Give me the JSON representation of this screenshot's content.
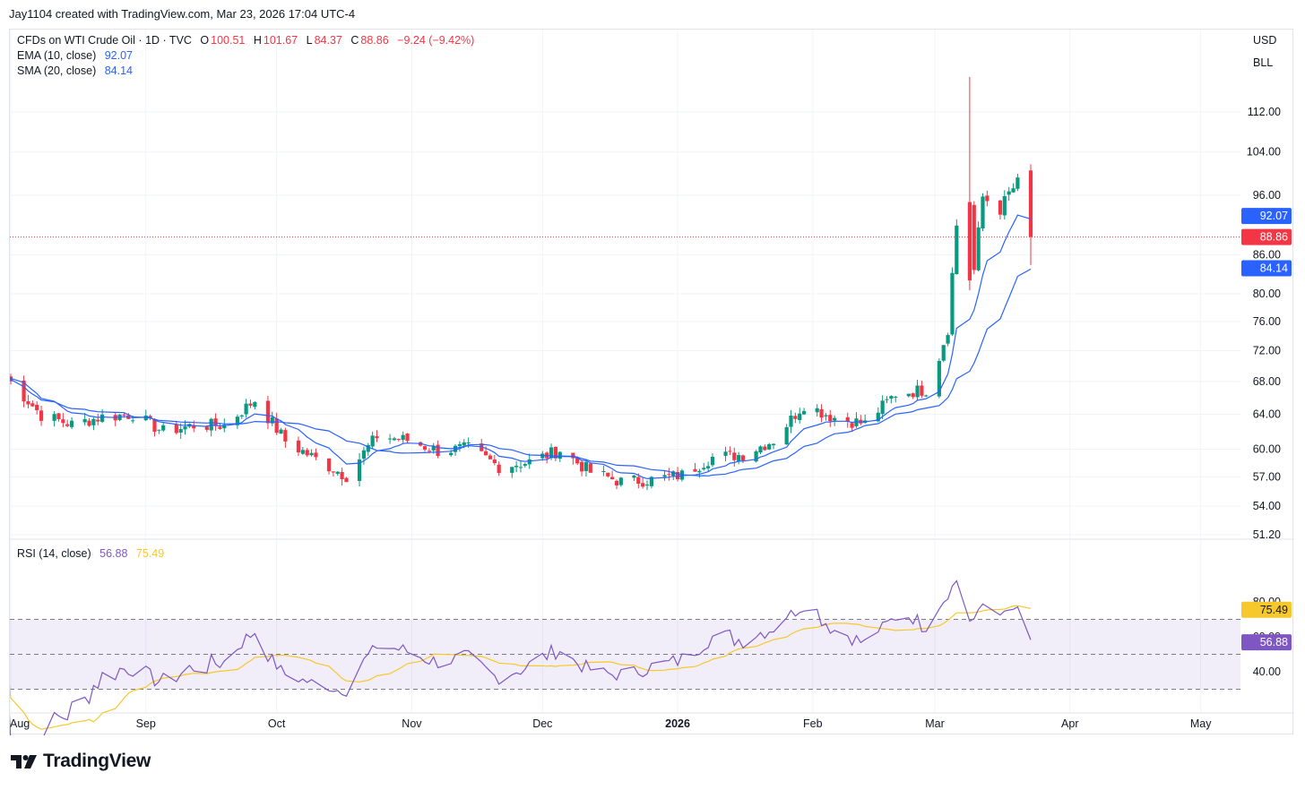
{
  "header": {
    "note": "Jay1104 created with TradingView.com, Mar 23, 2026 17:04 UTC-4"
  },
  "legend": {
    "symbol": "CFDs on WTI Crude Oil · 1D · TVC",
    "open_label": "O",
    "open": "100.51",
    "high_label": "H",
    "high": "101.67",
    "low_label": "L",
    "low": "84.37",
    "close_label": "C",
    "close": "88.86",
    "change": "−9.24 (−9.42%)",
    "ema_label": "EMA (10, close)",
    "ema_value": "92.07",
    "sma_label": "SMA (20, close)",
    "sma_value": "84.14",
    "rsi_label": "RSI (14, close)",
    "rsi_value": "56.88",
    "rsi_ma_value": "75.49"
  },
  "price_axis": {
    "currency": "USD",
    "unit": "BLL"
  },
  "brand": {
    "name": "TradingView"
  },
  "colors": {
    "up": "#089981",
    "down": "#f23645",
    "ema": "#2962ff",
    "sma": "#2962ff",
    "rsi": "#7e57c2",
    "rsi_ma": "#f7c82b",
    "last_price": "#f23645",
    "grid": "#f0f3fa"
  },
  "chart_data": [
    {
      "type": "candlestick",
      "title": "CFDs on WTI Crude Oil · 1D · TVC",
      "y_axis": {
        "ticks": [
          51.2,
          54,
          57,
          60,
          64,
          68,
          72,
          76,
          80,
          86,
          96,
          104,
          112
        ],
        "scale": "log"
      },
      "x_axis": {
        "labels": [
          "Aug",
          "Sep",
          "Oct",
          "Nov",
          "Dec",
          "2026",
          "Feb",
          "Mar",
          "Apr",
          "May"
        ]
      },
      "last_ohlc": {
        "open": 100.51,
        "high": 101.67,
        "low": 84.37,
        "close": 88.86
      },
      "closes_sampled": [
        {
          "date": "2025-07-31",
          "close": 68.5
        },
        {
          "date": "2025-08-08",
          "close": 63.9
        },
        {
          "date": "2025-08-15",
          "close": 62.8
        },
        {
          "date": "2025-08-22",
          "close": 63.7
        },
        {
          "date": "2025-08-29",
          "close": 64.0
        },
        {
          "date": "2025-09-05",
          "close": 62.0
        },
        {
          "date": "2025-09-12",
          "close": 62.7
        },
        {
          "date": "2025-09-19",
          "close": 62.7
        },
        {
          "date": "2025-09-26",
          "close": 65.7
        },
        {
          "date": "2025-10-03",
          "close": 60.9
        },
        {
          "date": "2025-10-10",
          "close": 58.9
        },
        {
          "date": "2025-10-17",
          "close": 57.1
        },
        {
          "date": "2025-10-24",
          "close": 61.5
        },
        {
          "date": "2025-10-31",
          "close": 61.0
        },
        {
          "date": "2025-11-07",
          "close": 59.8
        },
        {
          "date": "2025-11-14",
          "close": 60.1
        },
        {
          "date": "2025-11-21",
          "close": 58.1
        },
        {
          "date": "2025-11-28",
          "close": 58.6
        },
        {
          "date": "2025-12-05",
          "close": 59.9
        },
        {
          "date": "2025-12-12",
          "close": 57.5
        },
        {
          "date": "2025-12-19",
          "close": 56.5
        },
        {
          "date": "2025-12-26",
          "close": 56.7
        },
        {
          "date": "2026-01-02",
          "close": 57.2
        },
        {
          "date": "2026-01-09",
          "close": 59.1
        },
        {
          "date": "2026-01-16",
          "close": 59.4
        },
        {
          "date": "2026-01-23",
          "close": 61.0
        },
        {
          "date": "2026-01-30",
          "close": 65.2
        },
        {
          "date": "2026-02-06",
          "close": 63.6
        },
        {
          "date": "2026-02-13",
          "close": 62.9
        },
        {
          "date": "2026-02-20",
          "close": 66.5
        },
        {
          "date": "2026-02-27",
          "close": 67.0
        },
        {
          "date": "2026-03-02",
          "close": 71.2
        },
        {
          "date": "2026-03-04",
          "close": 75.0
        },
        {
          "date": "2026-03-06",
          "close": 90.9
        },
        {
          "date": "2026-03-09",
          "close": 94.8
        },
        {
          "date": "2026-03-10",
          "close": 83.5
        },
        {
          "date": "2026-03-12",
          "close": 95.7
        },
        {
          "date": "2026-03-16",
          "close": 93.5
        },
        {
          "date": "2026-03-18",
          "close": 96.3
        },
        {
          "date": "2026-03-20",
          "close": 98.2
        },
        {
          "date": "2026-03-23",
          "close": 88.86
        }
      ],
      "ema_10_last": 92.07,
      "sma_20_last": 84.14
    },
    {
      "type": "line",
      "title": "RSI (14, close)",
      "y_axis": {
        "ticks": [
          40,
          60,
          80
        ],
        "bands": [
          30,
          50,
          70
        ]
      },
      "rsi_last": 56.88,
      "rsi_ma_last": 75.49
    }
  ]
}
